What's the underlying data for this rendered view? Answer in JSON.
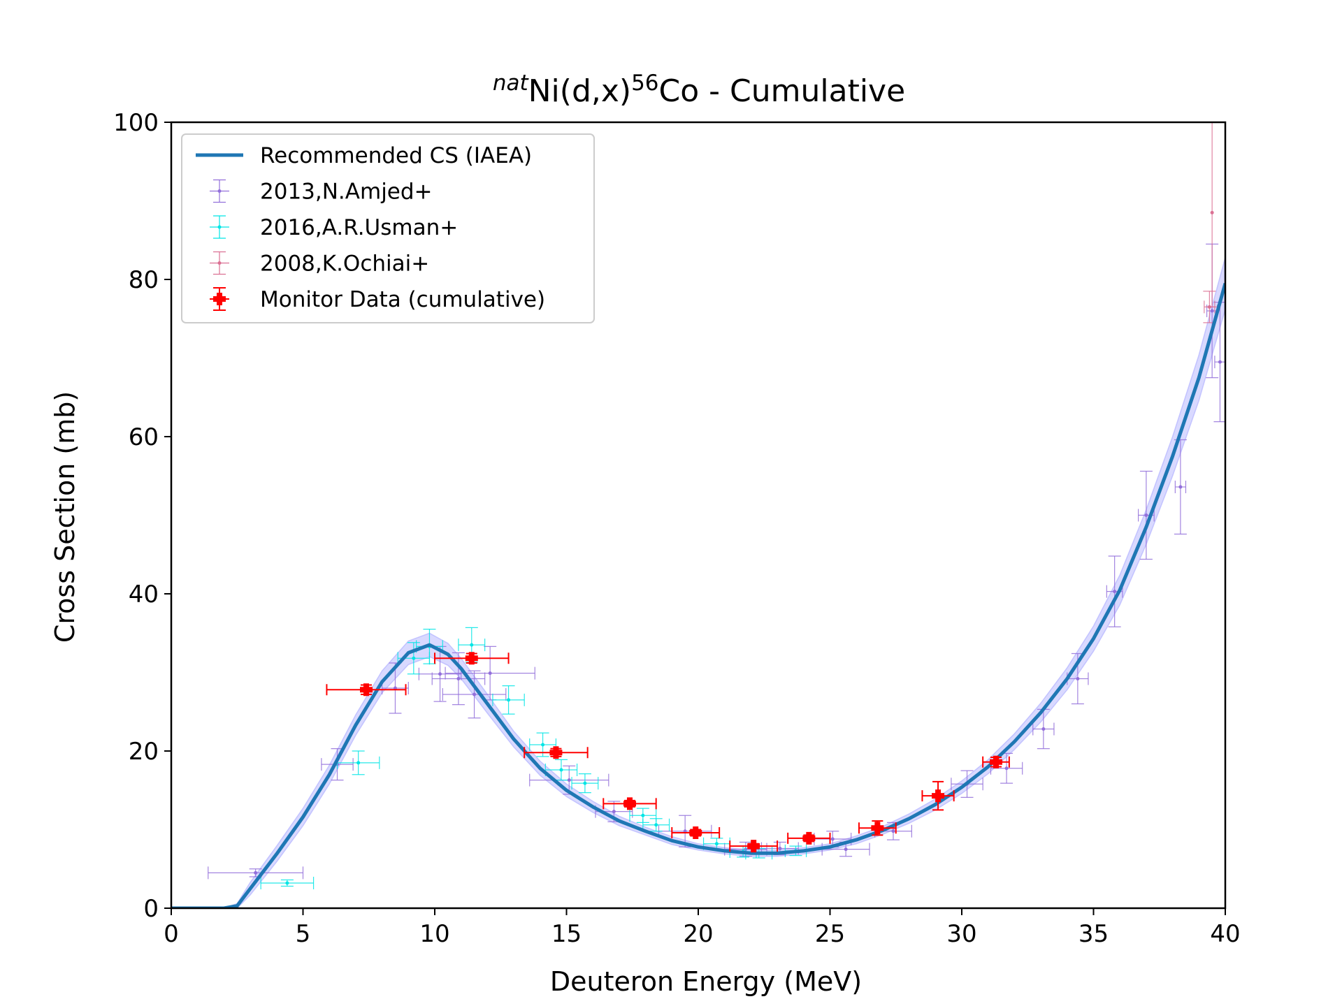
{
  "chart_data": {
    "type": "scatter",
    "title": {
      "sup1": "nat",
      "main1": "Ni(d,x)",
      "sup2": "56",
      "main2": "Co - Cumulative"
    },
    "xlabel": "Deuteron Energy (MeV)",
    "ylabel": "Cross Section (mb)",
    "xlim": [
      0,
      40
    ],
    "ylim": [
      0,
      100
    ],
    "xticks": [
      0,
      5,
      10,
      15,
      20,
      25,
      30,
      35,
      40
    ],
    "yticks": [
      0,
      20,
      40,
      60,
      80,
      100
    ],
    "grid": false,
    "legend_position": "top-left",
    "legend": [
      {
        "label": "Recommended CS (IAEA)",
        "kind": "line",
        "color": "#1f77b4"
      },
      {
        "label": "2013,N.Amjed+",
        "kind": "errorbar",
        "color": "#9370db"
      },
      {
        "label": "2016,A.R.Usman+",
        "kind": "errorbar",
        "color": "#00e5e5"
      },
      {
        "label": "2008,K.Ochiai+",
        "kind": "errorbar",
        "color": "#db7093"
      },
      {
        "label": "Monitor Data (cumulative)",
        "kind": "errorbar",
        "color": "#ff0000"
      }
    ],
    "recommended_curve": {
      "name": "Recommended CS (IAEA)",
      "color": "#1f77b4",
      "band_color": "#aaaaff",
      "x": [
        0,
        2.0,
        2.5,
        3,
        4,
        5,
        6,
        7,
        8,
        9,
        9.8,
        10.5,
        11,
        12,
        13,
        14,
        15,
        16,
        17,
        18,
        19,
        20,
        21,
        22,
        23,
        24,
        25,
        26,
        27,
        28,
        29,
        30,
        31,
        32,
        33,
        34,
        35,
        36,
        37,
        38,
        39,
        40
      ],
      "y": [
        0,
        0,
        0.3,
        2.5,
        6.9,
        11.6,
        17.0,
        23.3,
        28.8,
        32.5,
        33.5,
        32.3,
        30.5,
        26.0,
        21.5,
        17.8,
        15.0,
        12.9,
        11.1,
        9.8,
        8.6,
        7.8,
        7.3,
        7.0,
        7.0,
        7.3,
        7.8,
        8.7,
        9.9,
        11.4,
        13.2,
        15.4,
        18.0,
        21.2,
        24.9,
        29.2,
        34.3,
        40.5,
        48.5,
        57.5,
        67.5,
        79.5
      ],
      "band_halfwidth": [
        0,
        0,
        0.3,
        0.8,
        1.0,
        1.1,
        1.2,
        1.3,
        1.4,
        1.5,
        1.5,
        1.4,
        1.3,
        1.2,
        1.0,
        0.9,
        0.8,
        0.7,
        0.6,
        0.5,
        0.5,
        0.4,
        0.4,
        0.4,
        0.4,
        0.4,
        0.4,
        0.5,
        0.5,
        0.6,
        0.7,
        0.8,
        0.9,
        1.0,
        1.2,
        1.4,
        1.6,
        1.9,
        2.2,
        2.5,
        2.9,
        3.3
      ]
    },
    "series": [
      {
        "name": "2013,N.Amjed+",
        "color": "#9370db",
        "points": [
          {
            "x": 3.2,
            "y": 4.5,
            "xerr": 1.8,
            "yerr": 0.5
          },
          {
            "x": 6.3,
            "y": 18.3,
            "xerr": 0.6,
            "yerr": 2.0
          },
          {
            "x": 8.5,
            "y": 28.0,
            "xerr": 0.5,
            "yerr": 3.2
          },
          {
            "x": 10.2,
            "y": 29.8,
            "xerr": 0.8,
            "yerr": 3.5
          },
          {
            "x": 10.9,
            "y": 29.2,
            "xerr": 1.0,
            "yerr": 3.3
          },
          {
            "x": 11.5,
            "y": 27.2,
            "xerr": 1.2,
            "yerr": 3.0
          },
          {
            "x": 12.1,
            "y": 29.9,
            "xerr": 1.7,
            "yerr": 3.4
          },
          {
            "x": 15.1,
            "y": 16.3,
            "xerr": 1.5,
            "yerr": 1.8
          },
          {
            "x": 16.8,
            "y": 12.3,
            "xerr": 0.7,
            "yerr": 1.3
          },
          {
            "x": 19.5,
            "y": 9.8,
            "xerr": 1.0,
            "yerr": 2.0
          },
          {
            "x": 21.8,
            "y": 7.5,
            "xerr": 0.8,
            "yerr": 0.9
          },
          {
            "x": 23.1,
            "y": 7.6,
            "xerr": 0.7,
            "yerr": 0.8
          },
          {
            "x": 25.1,
            "y": 8.8,
            "xerr": 0.7,
            "yerr": 1.0
          },
          {
            "x": 25.6,
            "y": 7.5,
            "xerr": 0.9,
            "yerr": 0.9
          },
          {
            "x": 27.4,
            "y": 9.8,
            "xerr": 0.7,
            "yerr": 1.1
          },
          {
            "x": 30.2,
            "y": 15.8,
            "xerr": 0.6,
            "yerr": 1.7
          },
          {
            "x": 31.7,
            "y": 17.8,
            "xerr": 0.6,
            "yerr": 1.9
          },
          {
            "x": 33.1,
            "y": 22.8,
            "xerr": 0.4,
            "yerr": 2.5
          },
          {
            "x": 34.4,
            "y": 29.2,
            "xerr": 0.4,
            "yerr": 3.2
          },
          {
            "x": 35.8,
            "y": 40.3,
            "xerr": 0.3,
            "yerr": 4.5
          },
          {
            "x": 37.0,
            "y": 50.0,
            "xerr": 0.3,
            "yerr": 5.6
          },
          {
            "x": 38.3,
            "y": 53.6,
            "xerr": 0.2,
            "yerr": 6.0
          },
          {
            "x": 39.5,
            "y": 76.0,
            "xerr": 0.2,
            "yerr": 8.5
          },
          {
            "x": 39.8,
            "y": 69.5,
            "xerr": 0.2,
            "yerr": 7.6
          }
        ]
      },
      {
        "name": "2016,A.R.Usman+",
        "color": "#00e5e5",
        "points": [
          {
            "x": 4.4,
            "y": 3.2,
            "xerr": 1.0,
            "yerr": 0.4
          },
          {
            "x": 7.1,
            "y": 18.5,
            "xerr": 0.8,
            "yerr": 1.5
          },
          {
            "x": 9.2,
            "y": 31.8,
            "xerr": 0.6,
            "yerr": 2.0
          },
          {
            "x": 9.8,
            "y": 33.3,
            "xerr": 0.5,
            "yerr": 2.2
          },
          {
            "x": 11.4,
            "y": 33.5,
            "xerr": 0.5,
            "yerr": 2.2
          },
          {
            "x": 12.8,
            "y": 26.5,
            "xerr": 0.6,
            "yerr": 1.8
          },
          {
            "x": 14.1,
            "y": 20.8,
            "xerr": 0.5,
            "yerr": 1.5
          },
          {
            "x": 14.8,
            "y": 17.6,
            "xerr": 0.6,
            "yerr": 1.3
          },
          {
            "x": 15.7,
            "y": 15.9,
            "xerr": 0.5,
            "yerr": 1.2
          },
          {
            "x": 17.9,
            "y": 11.8,
            "xerr": 0.5,
            "yerr": 0.9
          },
          {
            "x": 18.4,
            "y": 10.6,
            "xerr": 0.5,
            "yerr": 0.8
          },
          {
            "x": 20.7,
            "y": 8.2,
            "xerr": 0.5,
            "yerr": 0.7
          },
          {
            "x": 21.7,
            "y": 7.2,
            "xerr": 0.5,
            "yerr": 0.7
          },
          {
            "x": 22.3,
            "y": 7.0,
            "xerr": 0.5,
            "yerr": 0.6
          },
          {
            "x": 23.7,
            "y": 7.3,
            "xerr": 0.4,
            "yerr": 0.6
          }
        ]
      },
      {
        "name": "2008,K.Ochiai+",
        "color": "#db7093",
        "points": [
          {
            "x": 39.5,
            "y": 88.5,
            "xerr": 0,
            "yerr": 12.0
          },
          {
            "x": 39.4,
            "y": 76.5,
            "xerr": 0.2,
            "yerr": 2.0
          }
        ]
      },
      {
        "name": "Monitor Data (cumulative)",
        "color": "#ff0000",
        "points": [
          {
            "x": 7.4,
            "y": 27.8,
            "xerr": 1.5,
            "yerr": 0.6
          },
          {
            "x": 11.4,
            "y": 31.8,
            "xerr": 1.4,
            "yerr": 0.6
          },
          {
            "x": 14.6,
            "y": 19.8,
            "xerr": 1.2,
            "yerr": 0.5
          },
          {
            "x": 17.4,
            "y": 13.3,
            "xerr": 1.0,
            "yerr": 0.4
          },
          {
            "x": 19.9,
            "y": 9.6,
            "xerr": 0.9,
            "yerr": 0.4
          },
          {
            "x": 22.1,
            "y": 7.9,
            "xerr": 0.9,
            "yerr": 0.3
          },
          {
            "x": 24.2,
            "y": 8.9,
            "xerr": 0.8,
            "yerr": 0.4
          },
          {
            "x": 26.8,
            "y": 10.2,
            "xerr": 0.7,
            "yerr": 0.9
          },
          {
            "x": 29.1,
            "y": 14.3,
            "xerr": 0.6,
            "yerr": 1.8
          },
          {
            "x": 31.3,
            "y": 18.6,
            "xerr": 0.5,
            "yerr": 0.6
          }
        ]
      }
    ]
  }
}
